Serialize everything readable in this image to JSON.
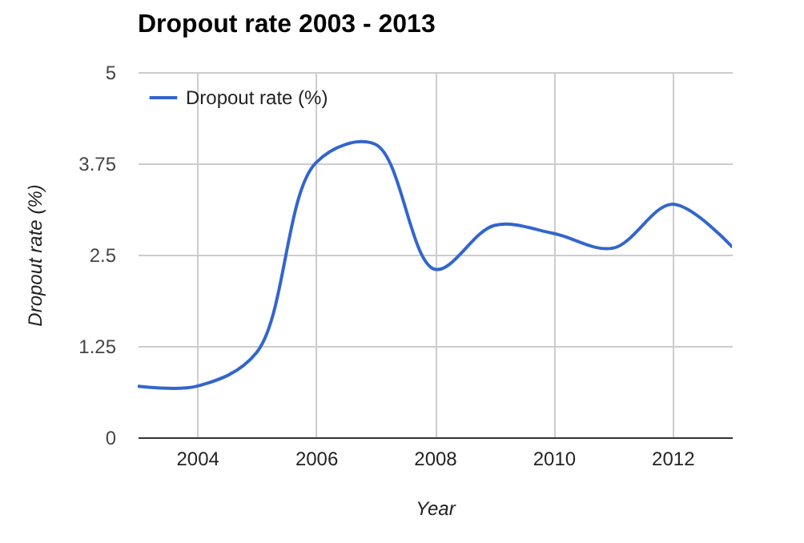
{
  "chart_data": {
    "type": "line",
    "title": "Dropout rate 2003 - 2013",
    "xlabel": "Year",
    "ylabel": "Dropout rate (%)",
    "x": [
      2003,
      2004,
      2005,
      2006,
      2007,
      2008,
      2009,
      2010,
      2011,
      2012,
      2013
    ],
    "series": [
      {
        "name": "Dropout rate (%)",
        "color": "#3366cc",
        "values": [
          0.7,
          0.7,
          1.16,
          3.76,
          4.01,
          2.3,
          2.9,
          2.79,
          2.59,
          3.19,
          2.61
        ]
      }
    ],
    "xlim": [
      2003,
      2013
    ],
    "xticks": [
      2004,
      2006,
      2008,
      2010,
      2012
    ],
    "ylim": [
      0,
      5
    ],
    "yticks": [
      0,
      1.25,
      2.5,
      3.75,
      5
    ],
    "grid": true,
    "legend": "top left"
  }
}
